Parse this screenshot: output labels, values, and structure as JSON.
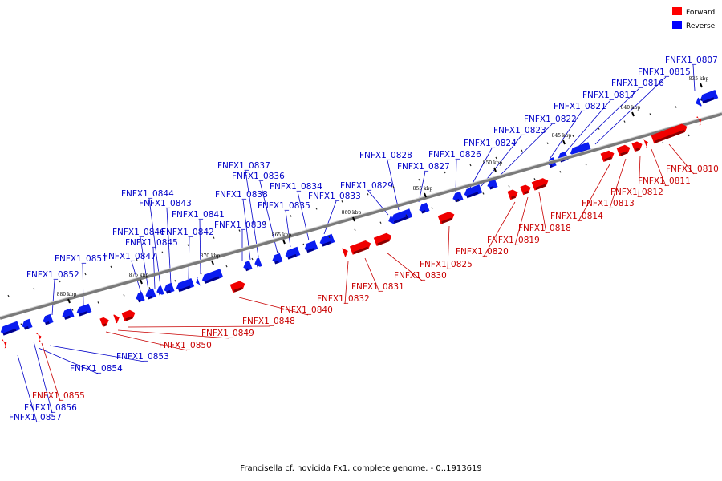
{
  "caption": "Francisella cf. novicida Fx1, complete genome. - 0..1913619",
  "legend": [
    {
      "label": "Forward",
      "color": "#ff0000"
    },
    {
      "label": "Reverse",
      "color": "#0000ff"
    }
  ],
  "ticks": [
    "835 kbp",
    "840 kbp",
    "845 kbp",
    "850 kbp",
    "855 kbp",
    "860 kbp",
    "865 kbp",
    "870 kbp",
    "875 kbp",
    "880 kbp"
  ],
  "genes_reverse": [
    "FNFX1_0807",
    "FNFX1_0815",
    "FNFX1_0816",
    "FNFX1_0817",
    "FNFX1_0821",
    "FNFX1_0822",
    "FNFX1_0823",
    "FNFX1_0824",
    "FNFX1_0826",
    "FNFX1_0827",
    "FNFX1_0828",
    "FNFX1_0829",
    "FNFX1_0833",
    "FNFX1_0834",
    "FNFX1_0835",
    "FNFX1_0836",
    "FNFX1_0837",
    "FNFX1_0838",
    "FNFX1_0839",
    "FNFX1_0841",
    "FNFX1_0842",
    "FNFX1_0843",
    "FNFX1_0844",
    "FNFX1_0845",
    "FNFX1_0846",
    "FNFX1_0847",
    "FNFX1_0851",
    "FNFX1_0852",
    "FNFX1_0853",
    "FNFX1_0854",
    "FNFX1_0856",
    "FNFX1_0857"
  ],
  "genes_forward": [
    "FNFX1_0810",
    "FNFX1_0811",
    "FNFX1_0812",
    "FNFX1_0813",
    "FNFX1_0814",
    "FNFX1_0818",
    "FNFX1_0819",
    "FNFX1_0820",
    "FNFX1_0825",
    "FNFX1_0830",
    "FNFX1_0831",
    "FNFX1_0832",
    "FNFX1_0840",
    "FNFX1_0848",
    "FNFX1_0849",
    "FNFX1_0850",
    "FNFX1_0855"
  ]
}
